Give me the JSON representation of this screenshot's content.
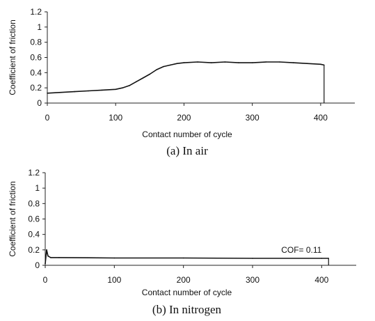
{
  "chart_data": [
    {
      "type": "line",
      "caption": "(a) In air",
      "xlabel": "Contact number of cycle",
      "ylabel": "Coefficient of friction",
      "xlim": [
        0,
        450
      ],
      "ylim": [
        0,
        1.2
      ],
      "xticks": [
        0,
        100,
        200,
        300,
        400
      ],
      "yticks": [
        0,
        0.2,
        0.4,
        0.6,
        0.8,
        1,
        1.2
      ],
      "ytick_labels": [
        "0",
        "0.2",
        "0.4",
        "0.6",
        "0.8",
        "1",
        "1.2"
      ],
      "grid": false,
      "series": [
        {
          "x": [
            0,
            20,
            40,
            60,
            80,
            100,
            110,
            120,
            130,
            140,
            150,
            160,
            170,
            180,
            190,
            200,
            220,
            240,
            260,
            280,
            300,
            320,
            340,
            360,
            380,
            400,
            405
          ],
          "y": [
            0.13,
            0.14,
            0.15,
            0.16,
            0.17,
            0.18,
            0.2,
            0.23,
            0.28,
            0.33,
            0.38,
            0.44,
            0.48,
            0.5,
            0.52,
            0.53,
            0.54,
            0.53,
            0.54,
            0.53,
            0.53,
            0.54,
            0.54,
            0.53,
            0.52,
            0.51,
            0.5
          ],
          "color": "#111111"
        }
      ]
    },
    {
      "type": "line",
      "caption": "(b) In nitrogen",
      "xlabel": "Contact number of cycle",
      "ylabel": "Coefficient of friction",
      "xlim": [
        0,
        450
      ],
      "ylim": [
        0,
        1.2
      ],
      "xticks": [
        0,
        100,
        200,
        300,
        400
      ],
      "yticks": [
        0,
        0.2,
        0.4,
        0.6,
        0.8,
        1,
        1.2
      ],
      "ytick_labels": [
        "0",
        "0.2",
        "0.4",
        "0.6",
        "0.8",
        "1",
        "1.2"
      ],
      "grid": false,
      "annotation": "COF= 0.11",
      "series": [
        {
          "x": [
            0,
            2,
            4,
            8,
            20,
            100,
            200,
            300,
            400,
            410
          ],
          "y": [
            0.02,
            0.2,
            0.12,
            0.1,
            0.1,
            0.095,
            0.095,
            0.09,
            0.09,
            0.09
          ],
          "color": "#111111"
        }
      ]
    }
  ]
}
